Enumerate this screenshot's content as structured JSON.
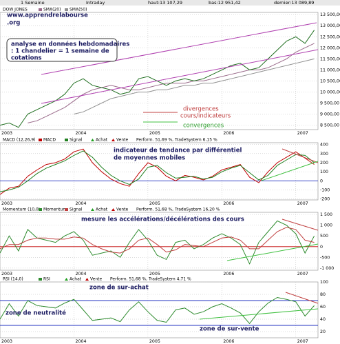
{
  "header": [
    "1 Semaine",
    "Intraday",
    "haut:13 107,29",
    "bas:12 951,42",
    "dernier:13 089,89"
  ],
  "annotations": [
    "www.apprendrelabourse",
    ".org",
    "analyse en données hebdomadaires",
    ": 1 chandelier = 1 semaine de",
    "cotations",
    "divergences",
    "cours/indicateurs",
    "convergences",
    "indicateur de tendance par différentiel",
    "de moyennes mobiles",
    "mesure les accélérations/décélérations des cours",
    "zone de sur-achat",
    "zone de neutralité",
    "zone de sur-vente"
  ],
  "chart_data": [
    {
      "type": "line",
      "title": "DOW JONES",
      "x": [
        2003.0,
        2003.125,
        2003.25,
        2003.375,
        2003.5,
        2003.625,
        2003.75,
        2003.875,
        2004.0,
        2004.125,
        2004.25,
        2004.375,
        2004.5,
        2004.625,
        2004.75,
        2004.875,
        2005.0,
        2005.125,
        2005.25,
        2005.375,
        2005.5,
        2005.625,
        2005.75,
        2005.875,
        2006.0,
        2006.125,
        2006.25,
        2006.375,
        2006.5,
        2006.625,
        2006.75,
        2006.875,
        2007.0,
        2007.125,
        2007.25
      ],
      "series": [
        {
          "name": "SMA(20)",
          "color": "#9a6a8a",
          "values": [
            null,
            null,
            null,
            8600,
            8700,
            8900,
            9100,
            9300,
            9600,
            9900,
            10100,
            10200,
            10300,
            10200,
            10100,
            10100,
            10200,
            10300,
            10400,
            10400,
            10400,
            10500,
            10500,
            10600,
            10700,
            10800,
            10900,
            11000,
            11000,
            11100,
            11300,
            11500,
            11800,
            12000,
            12200
          ]
        },
        {
          "name": "SMA(50)",
          "color": "#909090",
          "values": [
            null,
            null,
            null,
            null,
            null,
            null,
            null,
            null,
            9000,
            9100,
            9300,
            9500,
            9700,
            9800,
            9900,
            10000,
            10000,
            10100,
            10100,
            10200,
            10300,
            10300,
            10400,
            10400,
            10500,
            10600,
            10700,
            10800,
            10900,
            11000,
            11100,
            11200,
            11300,
            11400,
            11500
          ]
        },
        {
          "name": "DOW JONES",
          "color": "#1f6e1f",
          "values": [
            8500,
            8600,
            8400,
            9000,
            9200,
            9400,
            9600,
            9900,
            10400,
            10600,
            10300,
            10200,
            10100,
            9900,
            10000,
            10600,
            10700,
            10500,
            10300,
            10500,
            10600,
            10500,
            10600,
            10800,
            11000,
            11200,
            11300,
            11000,
            11100,
            11500,
            11900,
            12300,
            12500,
            12200,
            12800
          ]
        }
      ],
      "xlim": [
        2003.0,
        2007.3
      ],
      "xticks": [
        2003,
        2004,
        2005,
        2006,
        2007
      ],
      "ylim": [
        8300,
        13600
      ],
      "yticks": [
        {
          "value": 13500,
          "label": "13 500,00"
        },
        {
          "value": 13000,
          "label": "13 000,00"
        },
        {
          "value": 12500,
          "label": "12 500,00"
        },
        {
          "value": 12000,
          "label": "12 000,00"
        },
        {
          "value": 11500,
          "label": "11 500,00"
        },
        {
          "value": 11000,
          "label": "11 000,00"
        },
        {
          "value": 10500,
          "label": "10 500,00"
        },
        {
          "value": 10000,
          "label": "10 000,00"
        },
        {
          "value": 9500,
          "label": "9 500,00"
        },
        {
          "value": 9000,
          "label": "9 000,00"
        },
        {
          "value": 8500,
          "label": "8 500,00"
        }
      ],
      "grid": true
    },
    {
      "type": "line",
      "title": "MACD (12,26,9)",
      "x": [
        2003.0,
        2003.125,
        2003.25,
        2003.375,
        2003.5,
        2003.625,
        2003.75,
        2003.875,
        2004.0,
        2004.125,
        2004.25,
        2004.375,
        2004.5,
        2004.625,
        2004.75,
        2004.875,
        2005.0,
        2005.125,
        2005.25,
        2005.375,
        2005.5,
        2005.625,
        2005.75,
        2005.875,
        2006.0,
        2006.125,
        2006.25,
        2006.375,
        2006.5,
        2006.625,
        2006.75,
        2006.875,
        2007.0,
        2007.125,
        2007.25
      ],
      "series": [
        {
          "name": "MACD",
          "color": "#c00000",
          "values": [
            -150,
            -80,
            -60,
            50,
            120,
            180,
            200,
            240,
            320,
            350,
            200,
            100,
            20,
            -30,
            -60,
            80,
            200,
            150,
            50,
            0,
            60,
            40,
            10,
            50,
            120,
            150,
            180,
            40,
            -20,
            100,
            200,
            260,
            320,
            250,
            180
          ]
        },
        {
          "name": "Signal",
          "color": "#208020",
          "values": [
            -120,
            -100,
            -70,
            0,
            80,
            140,
            180,
            220,
            280,
            330,
            260,
            150,
            60,
            0,
            -40,
            20,
            150,
            170,
            90,
            30,
            40,
            50,
            20,
            40,
            100,
            140,
            170,
            90,
            10,
            60,
            170,
            230,
            290,
            280,
            200
          ]
        }
      ],
      "legend_extra": [
        "Achat",
        "Vente"
      ],
      "performance": "Perform. 51,69 %, TradeSystem 6,15 %",
      "levels": [
        0
      ],
      "level_color": "#2030c0",
      "xlim": [
        2003.0,
        2007.3
      ],
      "xticks": [
        2003,
        2004,
        2005,
        2006,
        2007
      ],
      "ylim": [
        -210,
        420
      ],
      "yticks": [
        400,
        300,
        200,
        100,
        0,
        -100,
        -200
      ],
      "grid": true
    },
    {
      "type": "line",
      "title": "Momentum (10,0)",
      "x": [
        2003.0,
        2003.125,
        2003.25,
        2003.375,
        2003.5,
        2003.625,
        2003.75,
        2003.875,
        2004.0,
        2004.125,
        2004.25,
        2004.375,
        2004.5,
        2004.625,
        2004.75,
        2004.875,
        2005.0,
        2005.125,
        2005.25,
        2005.375,
        2005.5,
        2005.625,
        2005.75,
        2005.875,
        2006.0,
        2006.125,
        2006.25,
        2006.375,
        2006.5,
        2006.625,
        2006.75,
        2006.875,
        2007.0,
        2007.125,
        2007.25
      ],
      "series": [
        {
          "name": "Momentum",
          "color": "#2e8b2e",
          "values": [
            -300,
            500,
            -200,
            800,
            400,
            300,
            200,
            500,
            700,
            300,
            -400,
            -300,
            -200,
            -500,
            200,
            800,
            300,
            -400,
            -600,
            200,
            300,
            -100,
            100,
            400,
            600,
            400,
            100,
            -800,
            200,
            700,
            1200,
            1000,
            600,
            -300,
            500
          ]
        },
        {
          "name": "Signal",
          "color": "#c04040",
          "values": [
            -100,
            100,
            100,
            300,
            400,
            400,
            350,
            350,
            450,
            400,
            100,
            -100,
            -250,
            -300,
            -100,
            300,
            400,
            100,
            -250,
            -150,
            100,
            50,
            0,
            200,
            400,
            450,
            300,
            -100,
            -100,
            300,
            700,
            900,
            800,
            300,
            200
          ]
        }
      ],
      "legend_extra": [
        "Achat",
        "Vente"
      ],
      "performance": "Perform. 51,68 %, TradeSystem 16,20 %",
      "levels": [
        0
      ],
      "level_color": "#c00000",
      "xlim": [
        2003.0,
        2007.3
      ],
      "xticks": [
        2003,
        2004,
        2005,
        2006,
        2007
      ],
      "ylim": [
        -1100,
        1600
      ],
      "yticks": [
        {
          "value": 1500,
          "label": "1 500"
        },
        {
          "value": 1000,
          "label": "1 000"
        },
        500,
        0,
        -500,
        {
          "value": -1000,
          "label": "-1 000"
        }
      ],
      "grid": true
    },
    {
      "type": "line",
      "title": "RSI (14,0)",
      "x": [
        2003.0,
        2003.125,
        2003.25,
        2003.375,
        2003.5,
        2003.625,
        2003.75,
        2003.875,
        2004.0,
        2004.125,
        2004.25,
        2004.375,
        2004.5,
        2004.625,
        2004.75,
        2004.875,
        2005.0,
        2005.125,
        2005.25,
        2005.375,
        2005.5,
        2005.625,
        2005.75,
        2005.875,
        2006.0,
        2006.125,
        2006.25,
        2006.375,
        2006.5,
        2006.625,
        2006.75,
        2006.875,
        2007.0,
        2007.125,
        2007.25
      ],
      "series": [
        {
          "name": "RSI",
          "color": "#2e8b2e",
          "values": [
            40,
            65,
            45,
            70,
            62,
            60,
            58,
            66,
            72,
            55,
            38,
            40,
            42,
            36,
            55,
            68,
            52,
            38,
            35,
            55,
            58,
            48,
            52,
            60,
            65,
            58,
            50,
            33,
            52,
            66,
            75,
            72,
            68,
            45,
            62
          ]
        }
      ],
      "legend_extra": [
        "Achat",
        "Vente"
      ],
      "performance": "Perform. 51,68 %, TradeSystem 4,71 %",
      "levels": [
        70,
        30
      ],
      "level_color": "#2030c0",
      "xlim": [
        2003.0,
        2007.3
      ],
      "xticks": [
        2003,
        2004,
        2005,
        2006,
        2007
      ],
      "ylim": [
        10,
        100
      ],
      "yticks": [
        100,
        80,
        60,
        40,
        20
      ],
      "grid": true
    }
  ]
}
